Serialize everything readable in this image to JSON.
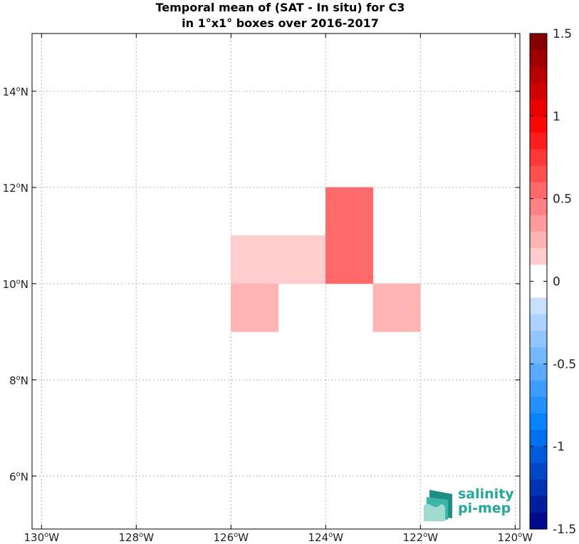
{
  "title": {
    "line1": "Temporal mean of (SAT - In situ) for C3",
    "line2": "in 1°x1° boxes over 2016-2017"
  },
  "chart_data": {
    "type": "heatmap",
    "title": "Temporal mean of (SAT - In situ) for C3 in 1°x1° boxes over 2016-2017",
    "xlim": [
      -130.2,
      -119.9
    ],
    "ylim": [
      4.9,
      15.2
    ],
    "grid": true,
    "x_ticks": [
      {
        "value": -130,
        "label": "130°W"
      },
      {
        "value": -128,
        "label": "128°W"
      },
      {
        "value": -126,
        "label": "126°W"
      },
      {
        "value": -124,
        "label": "124°W"
      },
      {
        "value": -122,
        "label": "122°W"
      },
      {
        "value": -120,
        "label": "120°W"
      }
    ],
    "y_ticks": [
      {
        "value": 6,
        "label": "6°N"
      },
      {
        "value": 8,
        "label": "8°N"
      },
      {
        "value": 10,
        "label": "10°N"
      },
      {
        "value": 12,
        "label": "12°N"
      },
      {
        "value": 14,
        "label": "14°N"
      }
    ],
    "cells": [
      {
        "lon": -126,
        "lat": 10,
        "value": 0.15
      },
      {
        "lon": -125,
        "lat": 10,
        "value": 0.15
      },
      {
        "lon": -124,
        "lat": 10,
        "value": 0.55
      },
      {
        "lon": -124,
        "lat": 11,
        "value": 0.55
      },
      {
        "lon": -126,
        "lat": 9,
        "value": 0.25
      },
      {
        "lon": -123,
        "lat": 9,
        "value": 0.25
      }
    ],
    "colorbar": {
      "min": -1.5,
      "max": 1.5,
      "step": 0.1,
      "ticks": [
        {
          "value": 1.5,
          "label": "1.5"
        },
        {
          "value": 1,
          "label": "1"
        },
        {
          "value": 0.5,
          "label": "0.5"
        },
        {
          "value": 0,
          "label": "0"
        },
        {
          "value": -0.5,
          "label": "-0.5"
        },
        {
          "value": -1,
          "label": "-1"
        },
        {
          "value": -1.5,
          "label": "-1.5"
        }
      ]
    }
  },
  "logo": {
    "line1": "salinity",
    "line2": "pi-mep"
  },
  "colors": {
    "grid": "#b5b5b5",
    "axis": "#000000"
  }
}
